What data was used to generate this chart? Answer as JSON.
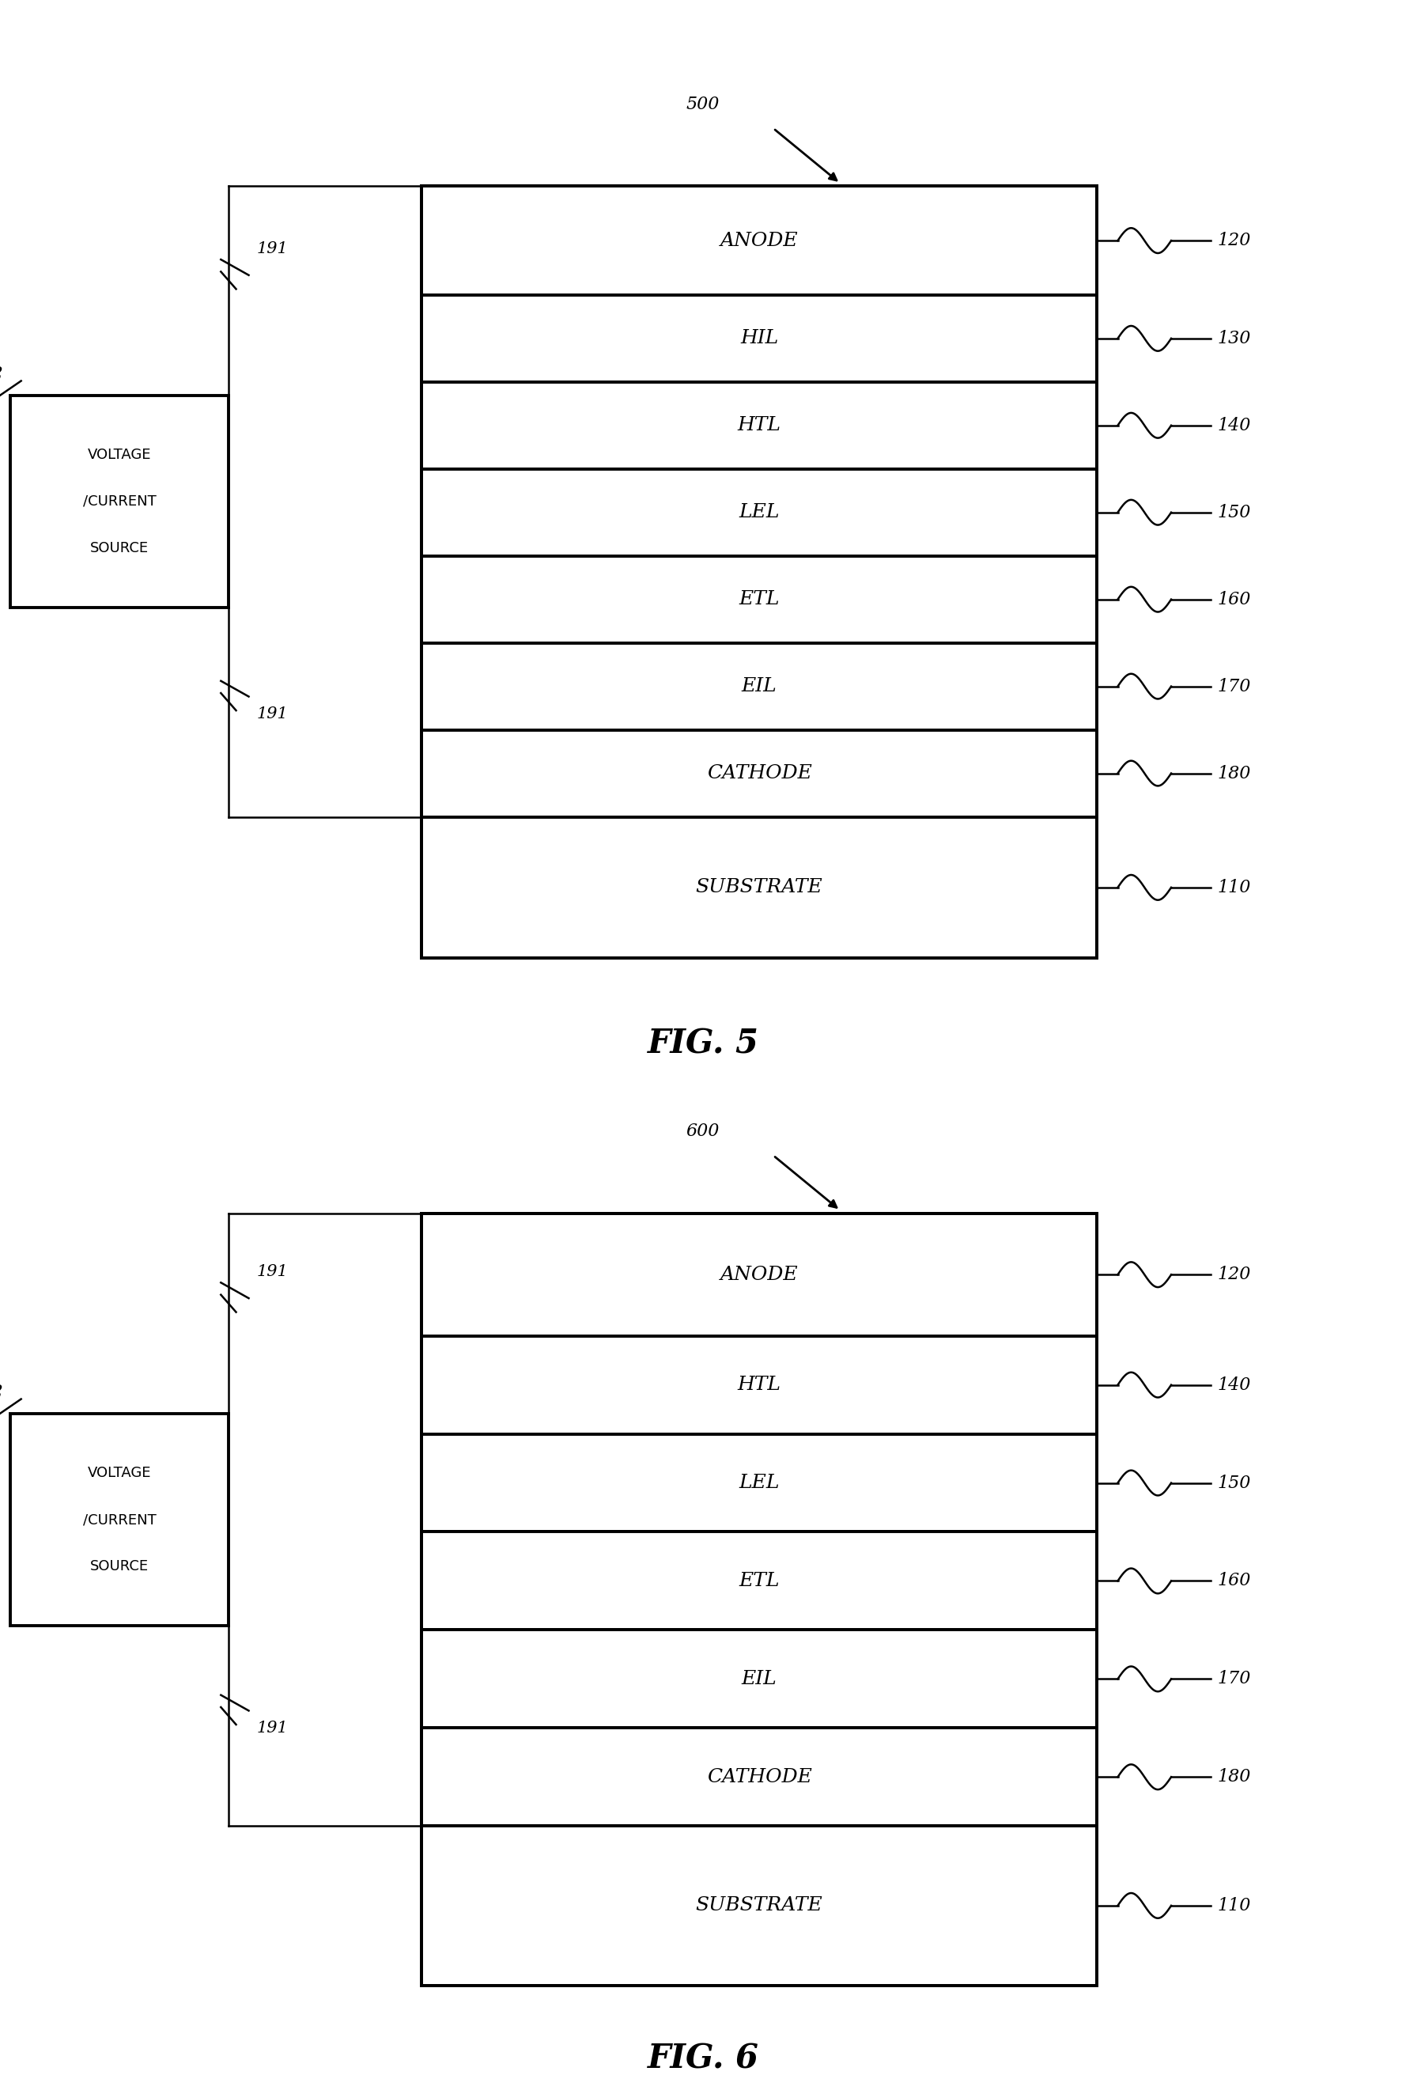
{
  "fig5": {
    "label": "500",
    "layers": [
      "ANODE",
      "HIL",
      "HTL",
      "LEL",
      "ETL",
      "EIL",
      "CATHODE",
      "SUBSTRATE"
    ],
    "ref_numbers": [
      "120",
      "130",
      "140",
      "150",
      "160",
      "170",
      "180",
      "110"
    ],
    "layer_heights": [
      1.0,
      0.8,
      0.8,
      0.8,
      0.8,
      0.8,
      0.8,
      1.3
    ],
    "title": "FIG. 5"
  },
  "fig6": {
    "label": "600",
    "layers": [
      "ANODE",
      "HTL",
      "LEL",
      "ETL",
      "EIL",
      "CATHODE",
      "SUBSTRATE"
    ],
    "ref_numbers": [
      "120",
      "140",
      "150",
      "160",
      "170",
      "180",
      "110"
    ],
    "layer_heights": [
      1.0,
      0.8,
      0.8,
      0.8,
      0.8,
      0.8,
      1.3
    ],
    "title": "FIG. 6"
  },
  "bg_color": "#ffffff",
  "line_color": "#000000"
}
